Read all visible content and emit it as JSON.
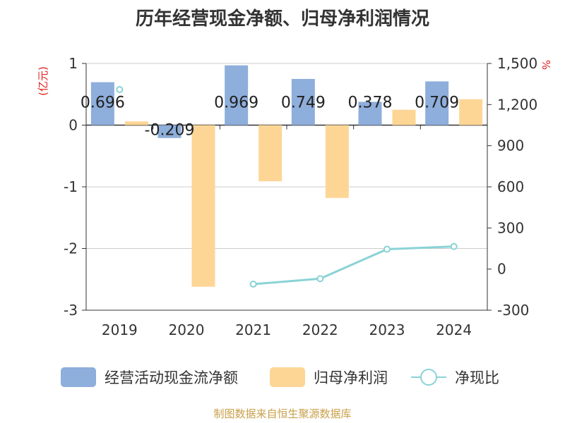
{
  "title": "历年经营现金净额、归母净利润情况",
  "source": "制图数据来自恒生聚源数据库",
  "chart_data": {
    "type": "bar",
    "categories": [
      "2019",
      "2020",
      "2021",
      "2022",
      "2023",
      "2024"
    ],
    "series": [
      {
        "name": "经营活动现金流净额",
        "kind": "bar",
        "axis": "left",
        "color": "#8eaedb",
        "values": [
          0.696,
          -0.209,
          0.969,
          0.749,
          0.378,
          0.709
        ],
        "labels": [
          "0.696",
          "-0.209",
          "0.969",
          "0.749",
          "0.378",
          "0.709"
        ]
      },
      {
        "name": "归母净利润",
        "kind": "bar",
        "axis": "left",
        "color": "#fdd696",
        "values": [
          0.06,
          -2.62,
          -0.91,
          -1.18,
          0.25,
          0.42
        ]
      },
      {
        "name": "净现比",
        "kind": "line",
        "axis": "right",
        "color": "#8ad3d6",
        "values": [
          1310,
          null,
          -110,
          -70,
          145,
          165
        ]
      }
    ],
    "left_axis": {
      "label": "(亿元)",
      "range": [
        -3,
        1
      ],
      "ticks": [
        "1",
        "0",
        "-1",
        "-2",
        "-3"
      ],
      "tick_values": [
        1,
        0,
        -1,
        -2,
        -3
      ]
    },
    "right_axis": {
      "label": "%",
      "range": [
        -300,
        1500
      ],
      "ticks": [
        "1,500",
        "1,200",
        "900",
        "600",
        "300",
        "0",
        "-300"
      ],
      "tick_values": [
        1500,
        1200,
        900,
        600,
        300,
        0,
        -300
      ]
    },
    "grid": true,
    "legend_position": "bottom",
    "colors": {
      "label_text": "#222222",
      "axis": "#333333",
      "grid": "#cccccc",
      "axis_title": "#e02020"
    }
  }
}
